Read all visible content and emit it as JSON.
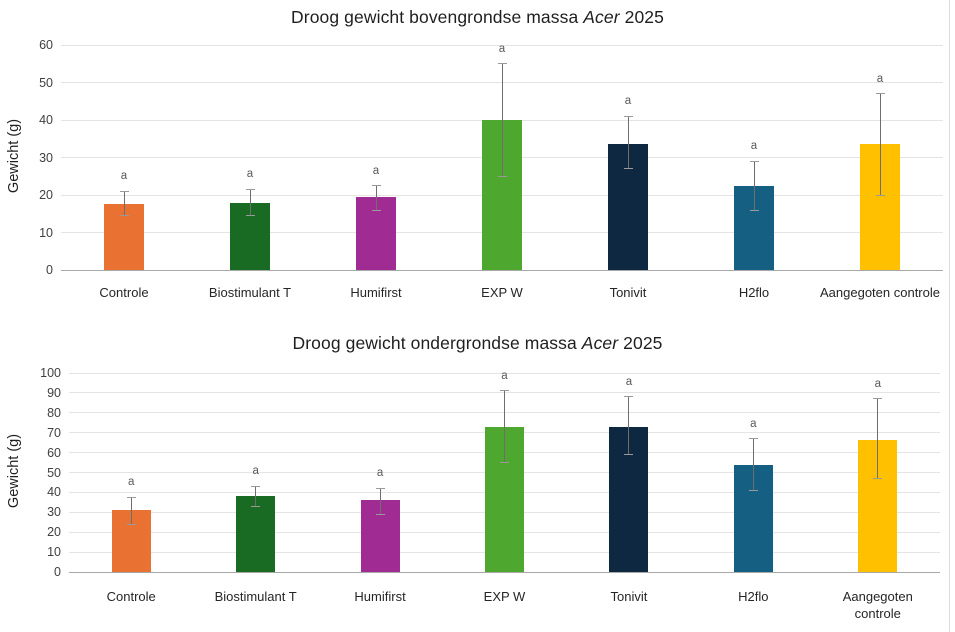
{
  "page": {
    "background": "#ffffff"
  },
  "chart_data": [
    {
      "id": "bovengrondse-massa",
      "type": "bar",
      "title_text": "Droog gewicht bovengrondse massa Acer 2025",
      "title_parts": {
        "prefix": "Droog gewicht bovengrondse massa ",
        "italic": "Acer",
        "suffix": " 2025"
      },
      "ylabel": "Gewicht (g)",
      "ylim": [
        0,
        60
      ],
      "yticks": [
        0,
        10,
        20,
        30,
        40,
        50,
        60
      ],
      "grid": true,
      "legend": "none",
      "categories": [
        "Controle",
        "Biostimulant T",
        "Humifirst",
        "EXP W",
        "Tonivit",
        "H2flo",
        "Aangegoten controle"
      ],
      "values": [
        17.5,
        18,
        19.5,
        40,
        33.5,
        22.5,
        33.5
      ],
      "error_low": [
        14.5,
        14.5,
        16,
        25,
        27,
        16,
        20
      ],
      "error_high": [
        21,
        21.5,
        22.5,
        55,
        41,
        29,
        47
      ],
      "sig_labels": [
        "a",
        "a",
        "a",
        "a",
        "a",
        "a",
        "a"
      ],
      "bar_colors": [
        "#E97132",
        "#196B24",
        "#A02B93",
        "#4EA72E",
        "#0E2841",
        "#156082",
        "#FFC000"
      ]
    },
    {
      "id": "ondergrondse-massa",
      "type": "bar",
      "title_text": "Droog gewicht ondergrondse massa Acer 2025",
      "title_parts": {
        "prefix": "Droog gewicht ondergrondse massa ",
        "italic": "Acer",
        "suffix": " 2025"
      },
      "ylabel": "Gewicht (g)",
      "ylim": [
        0,
        100
      ],
      "yticks": [
        0,
        10,
        20,
        30,
        40,
        50,
        60,
        70,
        80,
        90,
        100
      ],
      "grid": true,
      "legend": "none",
      "categories": [
        "Controle",
        "Biostimulant T",
        "Humifirst",
        "EXP W",
        "Tonivit",
        "H2flo",
        "Aangegoten\ncontrole"
      ],
      "values": [
        31,
        38,
        36,
        73,
        73,
        54,
        66.5
      ],
      "error_low": [
        24,
        33,
        29,
        55,
        59,
        41,
        47
      ],
      "error_high": [
        37.5,
        43,
        42,
        91,
        88,
        67,
        87
      ],
      "sig_labels": [
        "a",
        "a",
        "a",
        "a",
        "a",
        "a",
        "a"
      ],
      "bar_colors": [
        "#E97132",
        "#196B24",
        "#A02B93",
        "#4EA72E",
        "#0E2841",
        "#156082",
        "#FFC000"
      ]
    }
  ]
}
